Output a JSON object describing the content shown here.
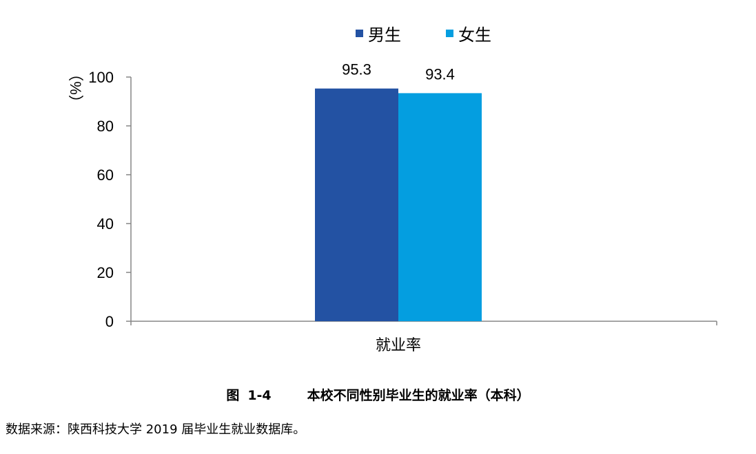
{
  "chart_data": {
    "type": "bar",
    "categories": [
      "就业率"
    ],
    "series": [
      {
        "name": "男生",
        "values": [
          95.3
        ],
        "color": "#2352a3"
      },
      {
        "name": "女生",
        "values": [
          93.4
        ],
        "color": "#049ee0"
      }
    ],
    "ylabel": "（%）",
    "ylim": [
      0,
      100
    ],
    "yticks": [
      "0",
      "20",
      "40",
      "60",
      "80",
      "100"
    ],
    "data_labels": [
      "95.3",
      "93.4"
    ],
    "legend_position": "top",
    "grid": false
  },
  "caption": {
    "figure_label": "图",
    "figure_number": "1-4",
    "title": "本校不同性别毕业生的就业率（本科）"
  },
  "source_note": "数据来源：陕西科技大学 2019 届毕业生就业数据库。"
}
